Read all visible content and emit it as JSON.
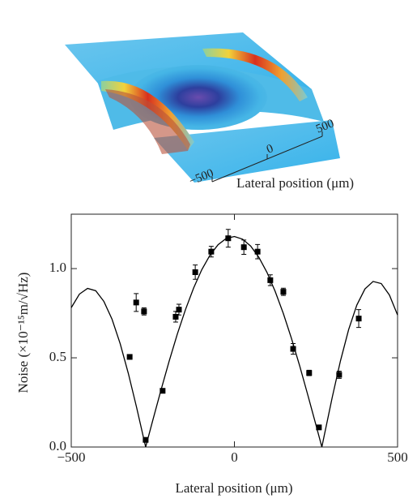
{
  "inset": {
    "xticks": [
      {
        "value": -500,
        "label": "−500"
      },
      0,
      500
    ],
    "xlabel": "Lateral position (μm)"
  },
  "chart_data": {
    "type": "scatter",
    "xlabel": "Lateral position (μm)",
    "ylabel": "Noise (×10⁻¹⁵m/√Hz)",
    "xlim": [
      -500,
      500
    ],
    "ylim": [
      0,
      1.305
    ],
    "xticks": [
      {
        "value": -500,
        "label": "−500"
      },
      0,
      500
    ],
    "yticks": [
      {
        "value": 0,
        "label": "0.0"
      },
      {
        "value": 0.5,
        "label": "0.5"
      },
      {
        "value": 1,
        "label": "1.0"
      }
    ],
    "series": [
      {
        "type": "line",
        "color": "#000000",
        "x": [
          -500,
          -475,
          -450,
          -425,
          -400,
          -375,
          -350,
          -325,
          -300,
          -275,
          -272,
          -250,
          -225,
          -200,
          -175,
          -150,
          -125,
          -100,
          -75,
          -50,
          -25,
          0,
          25,
          50,
          75,
          100,
          125,
          150,
          175,
          200,
          225,
          250,
          268,
          275,
          300,
          325,
          350,
          375,
          400,
          425,
          450,
          475,
          500
        ],
        "values": [
          0.781,
          0.857,
          0.889,
          0.876,
          0.816,
          0.716,
          0.579,
          0.412,
          0.224,
          0.024,
          0,
          0.151,
          0.319,
          0.481,
          0.633,
          0.77,
          0.891,
          0.994,
          1.075,
          1.134,
          1.169,
          1.18,
          1.165,
          1.126,
          1.063,
          0.978,
          0.872,
          0.748,
          0.608,
          0.455,
          0.291,
          0.123,
          0,
          0.062,
          0.28,
          0.483,
          0.658,
          0.795,
          0.886,
          0.928,
          0.916,
          0.852,
          0.74
        ]
      },
      {
        "type": "scatter",
        "color": "#000000",
        "x": [
          -321,
          -301,
          -277,
          -272,
          -220,
          -180,
          -170,
          -120,
          -71,
          -19,
          29,
          71,
          110,
          150,
          180,
          229,
          259,
          321,
          381
        ],
        "values": [
          0.505,
          0.81,
          0.76,
          0.04,
          0.315,
          0.73,
          0.77,
          0.98,
          1.095,
          1.17,
          1.12,
          1.095,
          0.935,
          0.87,
          0.55,
          0.415,
          0.11,
          0.405,
          0.72
        ],
        "errors": [
          0.01,
          0.05,
          0.02,
          0.01,
          0.01,
          0.03,
          0.03,
          0.04,
          0.03,
          0.05,
          0.04,
          0.04,
          0.03,
          0.02,
          0.03,
          0.015,
          0.01,
          0.02,
          0.05
        ]
      }
    ]
  }
}
